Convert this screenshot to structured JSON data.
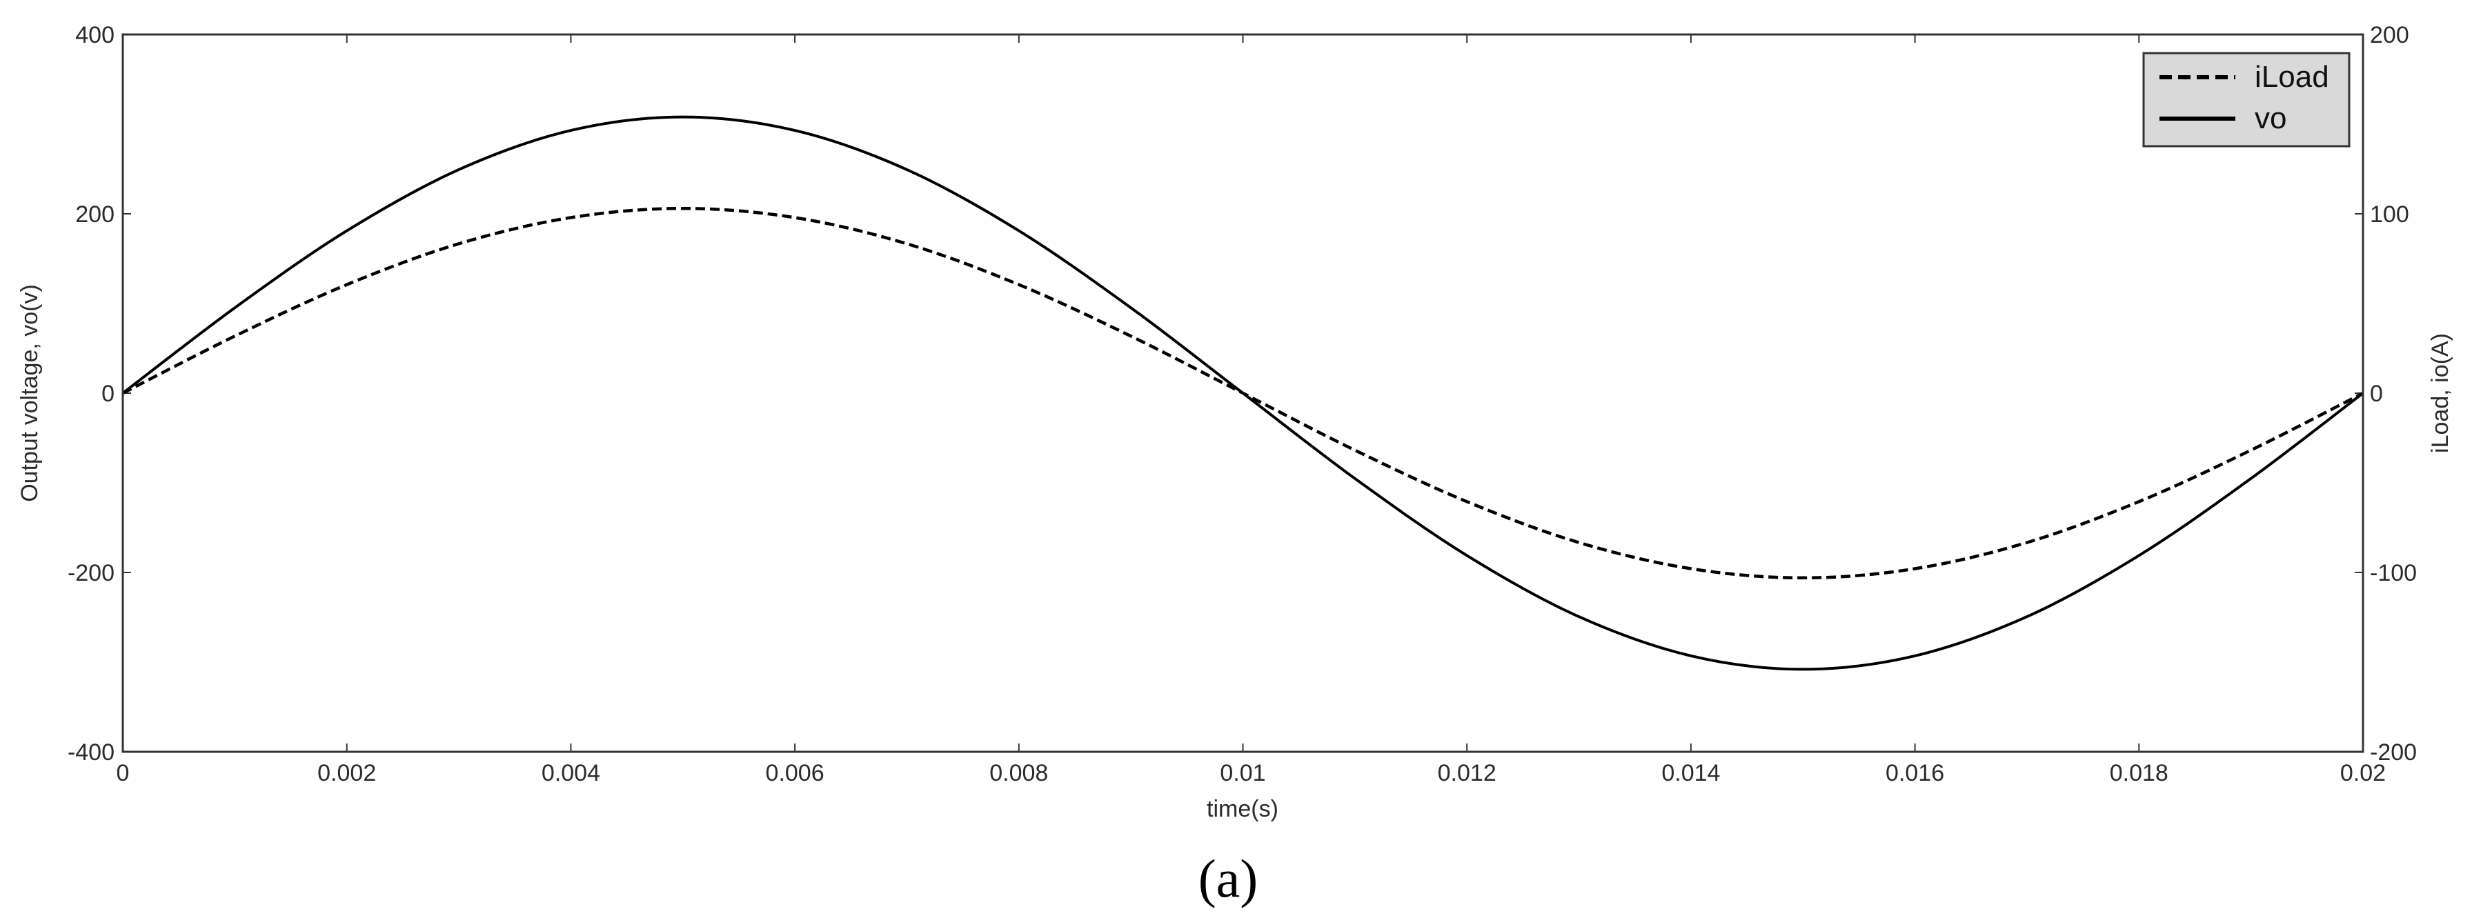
{
  "chart_data": {
    "type": "line",
    "title": "",
    "xlabel": "time(s)",
    "ylabel_left": "Output voltage, vo(v)",
    "ylabel_right": "iLoad, io(A)",
    "xlim": [
      0,
      0.02
    ],
    "ylim_left": [
      -400,
      400
    ],
    "ylim_right": [
      -200,
      200
    ],
    "x_ticks": [
      0,
      0.002,
      0.004,
      0.006,
      0.008,
      0.01,
      0.012,
      0.014,
      0.016,
      0.018,
      0.02
    ],
    "x_tick_labels": [
      "0",
      "0.002",
      "0.004",
      "0.006",
      "0.008",
      "0.01",
      "0.012",
      "0.014",
      "0.016",
      "0.018",
      "0.02"
    ],
    "y_left_ticks": [
      -400,
      -200,
      0,
      200,
      400
    ],
    "y_left_tick_labels": [
      "-400",
      "-200",
      "0",
      "200",
      "400"
    ],
    "y_right_ticks": [
      -200,
      -100,
      0,
      100,
      200
    ],
    "y_right_tick_labels": [
      "-200",
      "-100",
      "0",
      "100",
      "200"
    ],
    "grid": false,
    "legend_position": "top-right",
    "x": [
      0,
      0.001,
      0.002,
      0.003,
      0.004,
      0.005,
      0.006,
      0.007,
      0.008,
      0.009,
      0.01,
      0.011,
      0.012,
      0.013,
      0.014,
      0.015,
      0.016,
      0.017,
      0.018,
      0.019,
      0.02
    ],
    "series": [
      {
        "name": "iLoad",
        "axis": "right",
        "style": "dashed",
        "color": "#000000",
        "values": [
          0,
          31.8,
          60.5,
          83.3,
          97.9,
          103,
          97.9,
          83.3,
          60.5,
          31.8,
          0,
          -31.8,
          -60.5,
          -83.3,
          -97.9,
          -103,
          -97.9,
          -83.3,
          -60.5,
          -31.8,
          0
        ]
      },
      {
        "name": "vo",
        "axis": "left",
        "style": "solid",
        "color": "#000000",
        "values": [
          0,
          95.2,
          181.1,
          249.3,
          293,
          308,
          293,
          249.3,
          181.1,
          95.2,
          0,
          -95.2,
          -181.1,
          -249.3,
          -293,
          -308,
          -293,
          -249.3,
          -181.1,
          -95.2,
          0
        ]
      }
    ],
    "panel_label": "(a)",
    "legend_bg": "#d9d9d9"
  }
}
